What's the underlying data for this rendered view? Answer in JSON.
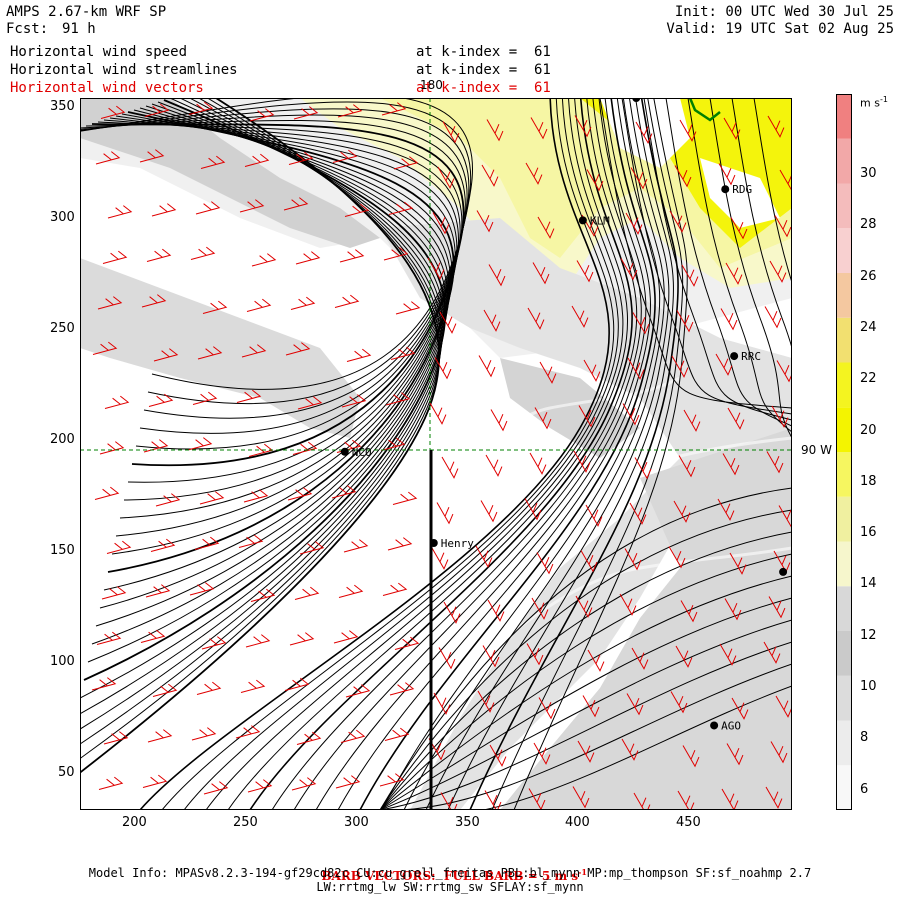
{
  "header": {
    "model_title": "AMPS 2.67-km WRF SP",
    "forecast_label": "Fcst:",
    "forecast_hours": "91 h",
    "init": "Init: 00 UTC Wed 30 Jul 25",
    "valid": "Valid: 19 UTC Sat 02 Aug 25",
    "fields": [
      {
        "name": "Horizontal wind speed",
        "level": "at k-index =  61"
      },
      {
        "name": "Horizontal wind streamlines",
        "level": "at k-index =  61"
      },
      {
        "name": "Horizontal wind vectors",
        "level": "at k-index =  61"
      }
    ]
  },
  "axes": {
    "x_ticks": [
      "200",
      "250",
      "300",
      "350",
      "400",
      "450"
    ],
    "y_ticks": [
      "350",
      "300",
      "250",
      "200",
      "150",
      "100",
      "50"
    ],
    "x_range": [
      175,
      495
    ],
    "y_range": [
      35,
      355
    ]
  },
  "grid_labels": {
    "lon": "180",
    "lat": "90 W"
  },
  "stations": [
    {
      "id": "NCO",
      "x": 294,
      "y": 196
    },
    {
      "id": "Henry",
      "x": 334,
      "y": 155
    },
    {
      "id": "KLM",
      "x": 401,
      "y": 300
    },
    {
      "id": "RDG",
      "x": 465,
      "y": 314
    },
    {
      "id": "RRC",
      "x": 469,
      "y": 239
    },
    {
      "id": "AGO",
      "x": 460,
      "y": 73
    },
    {
      "id": "",
      "x": 491,
      "y": 142
    },
    {
      "id": "",
      "x": 425,
      "y": 355
    }
  ],
  "colorbar": {
    "unit": "m s",
    "unit_exp": "-1",
    "labels": [
      "30",
      "28",
      "26",
      "24",
      "22",
      "20",
      "18",
      "16",
      "14",
      "12",
      "10",
      "8",
      "6"
    ],
    "colors": [
      "#f8f8f8",
      "#ececec",
      "#dcdcdc",
      "#cacaca",
      "#d8d8d8",
      "#f6f6cc",
      "#f0f0a0",
      "#f6f660",
      "#f4f400",
      "#f4f420",
      "#f2e070",
      "#f4c8a0",
      "#f8d0d0",
      "#f4bcbc",
      "#f2a8a8",
      "#f08080"
    ]
  },
  "footer": {
    "barb_note": "BARB VECTORS:  FULL BARB = 5 m s",
    "barb_exp": "-1",
    "model_info": "Model Info: MPASv8.2.3-194-gf29cd82c CU:cu_grell_freitas PBL:bl_mynn MP:mp_thompson SF:sf_noahmp 2.7",
    "model_info2": "LW:rrtmg_lw SW:rrtmg_sw SFLAY:sf_mynn"
  }
}
